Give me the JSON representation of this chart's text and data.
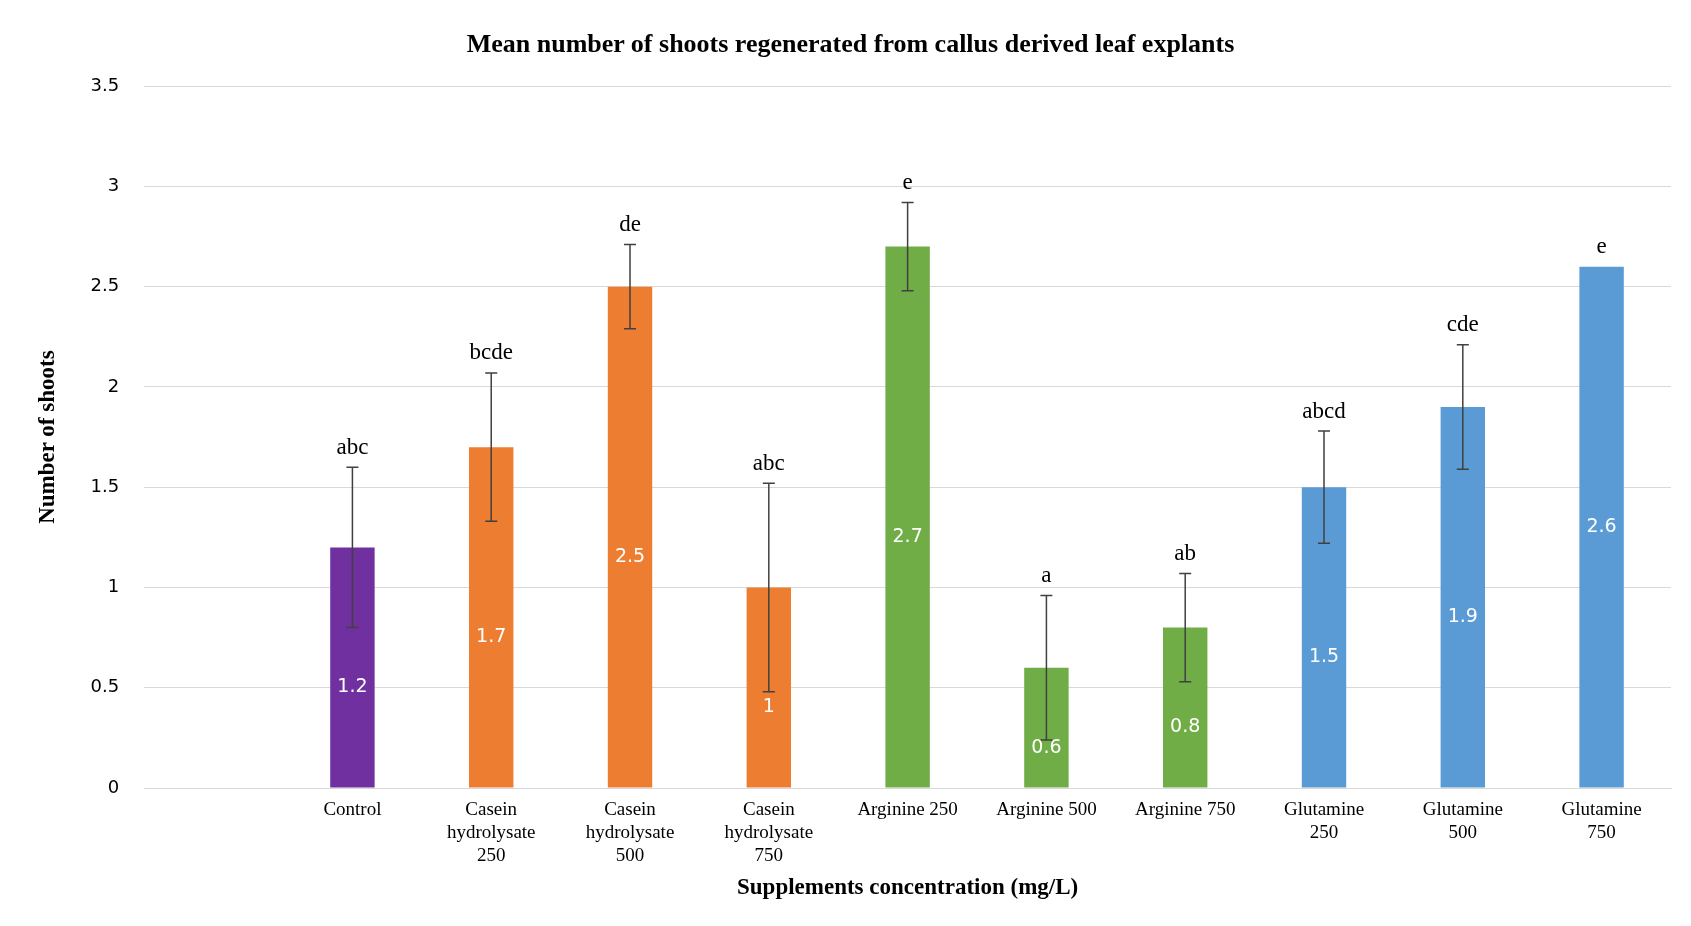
{
  "chart_data": {
    "type": "bar",
    "title": "Mean number of shoots regenerated from callus derived leaf explants",
    "xlabel": "Supplements concentration (mg/L)",
    "ylabel": "Number of shoots",
    "categories": [
      null,
      "Control",
      "Casein hydrolysate 250",
      "Casein hydrolysate 500",
      "Casein hydrolysate 750",
      "Arginine 250",
      "Arginine 500",
      "Arginine 750",
      "Glutamine 250",
      "Glutamine 500",
      "Glutamine 750"
    ],
    "values": [
      null,
      1.2,
      1.7,
      2.5,
      1,
      2.7,
      0.6,
      0.8,
      1.5,
      1.9,
      2.6
    ],
    "colors": [
      "#7030a0",
      "#7030a0",
      "#ed7d31",
      "#ed7d31",
      "#ed7d31",
      "#70ad47",
      "#70ad47",
      "#70ad47",
      "#5b9bd5",
      "#5b9bd5",
      "#5b9bd5"
    ],
    "errors": [
      null,
      0.4,
      0.37,
      0.21,
      0.52,
      0.22,
      0.36,
      0.27,
      0.28,
      0.31,
      null
    ],
    "ylim": [
      0,
      3.5
    ],
    "yticks": [
      0,
      0.5,
      1,
      1.5,
      2,
      2.5,
      3,
      3.5
    ],
    "grid": "y",
    "legend": false,
    "data_labels": true,
    "annotations": [
      {
        "text": "abc",
        "x": "Control",
        "y": 1.6
      },
      {
        "text": "bcde",
        "x": "Casein hydrolysate 250",
        "y": 2.07
      },
      {
        "text": "de",
        "x": "Casein hydrolysate 500",
        "y": 2.71
      },
      {
        "text": "abc",
        "x": "Casein hydrolysate 750",
        "y": 1.52
      },
      {
        "text": "e",
        "x": "Arginine 250",
        "y": 2.92
      },
      {
        "text": "a",
        "x": "Arginine 500",
        "y": 0.96
      },
      {
        "text": "ab",
        "x": "Arginine 750",
        "y": 1.07
      },
      {
        "text": "abcd",
        "x": "Glutamine 250",
        "y": 1.78
      },
      {
        "text": "cde",
        "x": "Glutamine 500",
        "y": 2.21
      },
      {
        "text": "e",
        "x": "Glutamine 750",
        "y": 2.6
      }
    ]
  }
}
